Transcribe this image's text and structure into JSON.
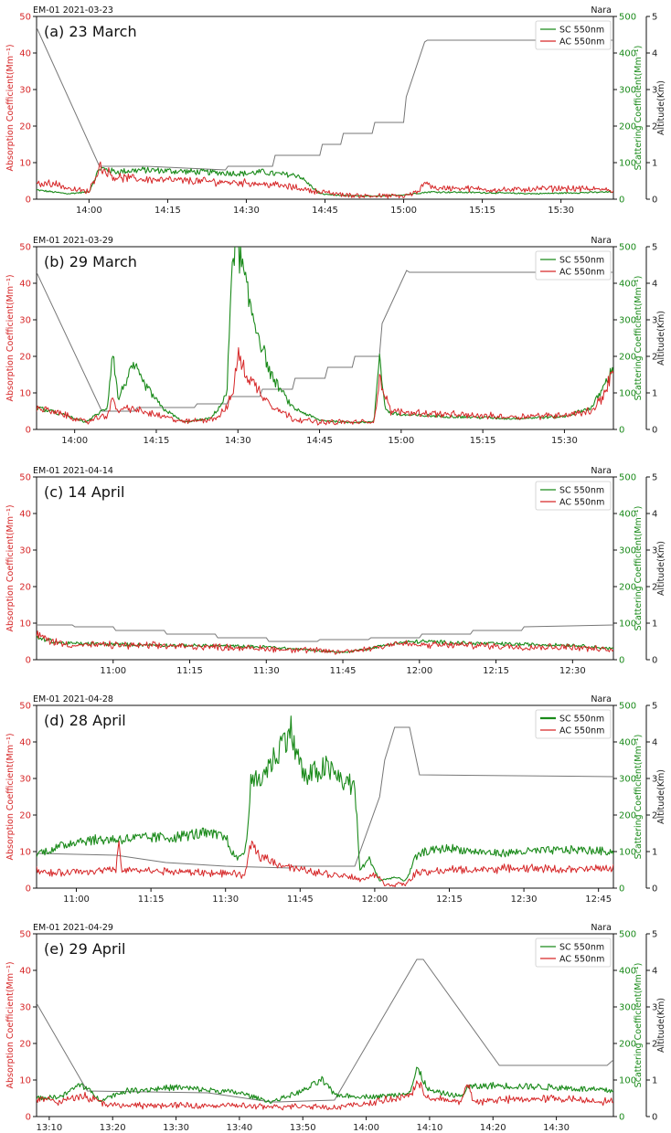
{
  "colors": {
    "absorption": "#d62728",
    "scattering": "#1a8a1a",
    "altitude": "#777777",
    "axis": "#111111"
  },
  "chart_data": [
    {
      "type": "line",
      "header": "EM-01 2021-03-23",
      "location": "Nara",
      "title": "(a) 23 March",
      "ylabel_left": "Absorption Coefficient(Mm⁻¹)",
      "ylabel_right": "Scattering Coefficient(Mm⁻¹)",
      "ylabel_alt": "Altitude(Km)",
      "ylim_left": [
        0,
        50
      ],
      "yticks_left": [
        0,
        10,
        20,
        30,
        40,
        50
      ],
      "ylim_right": [
        0,
        500
      ],
      "yticks_right": [
        0,
        100,
        200,
        300,
        400,
        500
      ],
      "ylim_alt": [
        0,
        5
      ],
      "yticks_alt": [
        0,
        1,
        2,
        3,
        4,
        5
      ],
      "xlim_min": [
        830,
        940
      ],
      "xticks": [
        "14:00",
        "14:15",
        "14:30",
        "14:45",
        "15:00",
        "15:15",
        "15:30"
      ],
      "xticks_min": [
        840,
        855,
        870,
        885,
        900,
        915,
        930
      ],
      "legend": [
        "SC 550nm",
        "AC 550nm"
      ],
      "legend_sc_bold": false,
      "series": [
        {
          "name": "SC 550nm",
          "x": [
            830,
            836,
            840,
            842,
            845,
            850,
            860,
            870,
            873,
            875,
            880,
            884,
            888,
            895,
            900,
            905,
            915,
            925,
            940
          ],
          "values": [
            25,
            15,
            20,
            85,
            75,
            80,
            75,
            70,
            75,
            70,
            65,
            15,
            10,
            8,
            12,
            20,
            18,
            15,
            20
          ]
        },
        {
          "name": "AC 550nm",
          "x": [
            830,
            833,
            836,
            840,
            842,
            845,
            850,
            860,
            870,
            875,
            880,
            884,
            890,
            900,
            903,
            904,
            906,
            910,
            920,
            930,
            940
          ],
          "values": [
            4,
            4.5,
            3,
            2,
            9,
            6,
            5.5,
            5,
            4.5,
            4,
            3,
            2,
            1,
            0.8,
            2,
            5,
            3,
            3,
            2.5,
            3,
            2.5
          ]
        },
        {
          "name": "Altitude",
          "x": [
            830,
            842,
            851,
            866,
            866.5,
            875,
            875.5,
            884,
            884.5,
            888,
            888.5,
            894,
            894.5,
            900,
            900.5,
            904,
            904.5,
            940
          ],
          "values": [
            4.7,
            0.9,
            0.9,
            0.8,
            0.9,
            0.9,
            1.2,
            1.2,
            1.5,
            1.5,
            1.8,
            1.8,
            2.1,
            2.1,
            2.8,
            4.3,
            4.35,
            4.35
          ]
        }
      ]
    },
    {
      "type": "line",
      "header": "EM-01 2021-03-29",
      "location": "Nara",
      "title": "(b) 29 March",
      "ylabel_left": "Absorption Coefficient(Mm⁻¹)",
      "ylabel_right": "Scattering Coefficient(Mm⁻¹)",
      "ylabel_alt": "Altitude(Km)",
      "ylim_left": [
        0,
        50
      ],
      "yticks_left": [
        0,
        10,
        20,
        30,
        40,
        50
      ],
      "ylim_right": [
        0,
        500
      ],
      "yticks_right": [
        0,
        100,
        200,
        300,
        400,
        500
      ],
      "ylim_alt": [
        0,
        5
      ],
      "yticks_alt": [
        0,
        1,
        2,
        3,
        4,
        5
      ],
      "xlim_min": [
        833,
        939
      ],
      "xticks": [
        "14:00",
        "14:15",
        "14:30",
        "14:45",
        "15:00",
        "15:15",
        "15:30"
      ],
      "xticks_min": [
        840,
        855,
        870,
        885,
        900,
        915,
        930
      ],
      "legend": [
        "SC 550nm",
        "AC 550nm"
      ],
      "legend_sc_bold": false,
      "series": [
        {
          "name": "SC 550nm",
          "x": [
            833,
            838,
            842,
            846,
            847,
            848,
            849,
            851,
            852,
            854,
            856,
            860,
            865,
            867,
            868,
            869,
            870,
            872,
            874,
            876,
            880,
            885,
            890,
            895,
            896,
            897,
            898,
            900,
            910,
            920,
            930,
            935,
            937,
            939
          ],
          "values": [
            60,
            40,
            20,
            60,
            220,
            80,
            120,
            175,
            140,
            100,
            60,
            20,
            30,
            70,
            100,
            500,
            500,
            350,
            250,
            150,
            60,
            25,
            20,
            20,
            210,
            60,
            45,
            40,
            35,
            30,
            35,
            60,
            110,
            170
          ]
        },
        {
          "name": "AC 550nm",
          "x": [
            833,
            838,
            842,
            846,
            847,
            848,
            850,
            852,
            855,
            860,
            866,
            868,
            869,
            870,
            872,
            876,
            880,
            885,
            890,
            895,
            896,
            898,
            910,
            920,
            930,
            935,
            937,
            939
          ],
          "values": [
            6,
            4,
            2,
            4,
            8,
            5,
            6,
            5,
            4,
            2,
            3,
            6,
            10,
            20,
            14,
            7,
            3,
            2,
            2,
            2,
            14,
            5,
            4,
            3.5,
            4,
            5,
            9,
            16
          ]
        },
        {
          "name": "Altitude",
          "x": [
            833,
            845,
            851,
            851.5,
            862,
            862.5,
            868,
            868.5,
            874,
            874.5,
            880,
            880.5,
            886,
            886.5,
            891,
            891.5,
            896,
            896.5,
            901,
            901.5,
            939
          ],
          "values": [
            4.3,
            0.5,
            0.5,
            0.6,
            0.6,
            0.7,
            0.7,
            0.9,
            0.9,
            1.1,
            1.1,
            1.4,
            1.4,
            1.7,
            1.7,
            2.0,
            2.0,
            2.9,
            4.35,
            4.3,
            4.3
          ]
        }
      ]
    },
    {
      "type": "line",
      "header": "EM-01 2021-04-14",
      "location": "Nara",
      "title": "(c) 14 April",
      "ylabel_left": "Absorption Coefficient(Mm⁻¹)",
      "ylabel_right": "Scattering Coefficient(Mm⁻¹)",
      "ylabel_alt": "Altitude(Km)",
      "ylim_left": [
        0,
        50
      ],
      "yticks_left": [
        0,
        10,
        20,
        30,
        40,
        50
      ],
      "ylim_right": [
        0,
        500
      ],
      "yticks_right": [
        0,
        100,
        200,
        300,
        400,
        500
      ],
      "ylim_alt": [
        0,
        5
      ],
      "yticks_alt": [
        0,
        1,
        2,
        3,
        4,
        5
      ],
      "xlim_min": [
        645,
        758
      ],
      "xticks": [
        "11:00",
        "11:15",
        "11:30",
        "11:45",
        "12:00",
        "12:15",
        "12:30"
      ],
      "xticks_min": [
        660,
        675,
        690,
        705,
        720,
        735,
        750
      ],
      "legend": [
        "SC 550nm",
        "AC 550nm"
      ],
      "legend_sc_bold": false,
      "series": [
        {
          "name": "SC 550nm",
          "x": [
            645,
            650,
            660,
            670,
            680,
            690,
            700,
            705,
            710,
            715,
            720,
            730,
            740,
            750,
            758
          ],
          "values": [
            60,
            45,
            42,
            40,
            38,
            35,
            25,
            20,
            30,
            45,
            50,
            45,
            42,
            40,
            30
          ]
        },
        {
          "name": "AC 550nm",
          "x": [
            645,
            648,
            652,
            660,
            670,
            680,
            690,
            700,
            705,
            710,
            715,
            720,
            730,
            740,
            750,
            758
          ],
          "values": [
            7,
            5,
            4,
            4,
            3.8,
            3.5,
            3,
            2.5,
            2,
            3,
            4.5,
            4,
            4,
            3.5,
            3.5,
            2.5
          ]
        },
        {
          "name": "Altitude",
          "x": [
            645,
            652,
            652.5,
            660,
            660.5,
            670,
            670.5,
            680,
            680.5,
            690,
            690.5,
            700,
            700.5,
            710,
            710.5,
            720,
            720.5,
            730,
            730.5,
            740,
            740.5,
            758
          ],
          "values": [
            0.95,
            0.95,
            0.9,
            0.9,
            0.8,
            0.8,
            0.7,
            0.7,
            0.6,
            0.6,
            0.5,
            0.5,
            0.55,
            0.55,
            0.6,
            0.6,
            0.7,
            0.7,
            0.8,
            0.8,
            0.9,
            0.95
          ]
        }
      ]
    },
    {
      "type": "line",
      "header": "EM-01 2021-04-28",
      "location": "Nara",
      "title": "(d) 28 April",
      "ylabel_left": "Absorption Coefficient(Mm⁻¹)",
      "ylabel_right": "Scattering Coefficient(Mm⁻¹)",
      "ylabel_alt": "Altitude(Km)",
      "ylim_left": [
        0,
        50
      ],
      "yticks_left": [
        0,
        10,
        20,
        30,
        40,
        50
      ],
      "ylim_right": [
        0,
        500
      ],
      "yticks_right": [
        0,
        100,
        200,
        300,
        400,
        500
      ],
      "ylim_alt": [
        0,
        5
      ],
      "yticks_alt": [
        0,
        1,
        2,
        3,
        4,
        5
      ],
      "xlim_min": [
        652,
        768
      ],
      "xticks": [
        "11:00",
        "11:15",
        "11:30",
        "11:45",
        "12:00",
        "12:15",
        "12:30",
        "12:45"
      ],
      "xticks_min": [
        660,
        675,
        690,
        705,
        720,
        735,
        750,
        765
      ],
      "legend": [
        "SC 550nm",
        "AC 550nm"
      ],
      "legend_sc_bold": true,
      "series": [
        {
          "name": "SC 550nm",
          "x": [
            652,
            656,
            660,
            670,
            680,
            685,
            690,
            692,
            694,
            695,
            697,
            700,
            703,
            704,
            706,
            710,
            714,
            716,
            717,
            719,
            721,
            724,
            726,
            727,
            728,
            730,
            735,
            740,
            745,
            750,
            760,
            768
          ],
          "values": [
            95,
            110,
            130,
            135,
            140,
            150,
            140,
            80,
            100,
            280,
            300,
            360,
            440,
            380,
            300,
            330,
            290,
            280,
            50,
            80,
            20,
            30,
            20,
            40,
            80,
            100,
            110,
            100,
            95,
            100,
            105,
            100
          ]
        },
        {
          "name": "AC 550nm",
          "x": [
            652,
            655,
            660,
            668,
            668.5,
            669,
            680,
            690,
            694,
            695,
            697,
            700,
            705,
            710,
            716,
            717,
            720,
            722,
            726,
            727,
            728,
            735,
            740,
            750,
            760,
            768
          ],
          "values": [
            5,
            4,
            4.5,
            5,
            13,
            5,
            4.5,
            4,
            3.5,
            12,
            9,
            7,
            5,
            4,
            3,
            2,
            4,
            1,
            1,
            2,
            4,
            5,
            5,
            5.5,
            5,
            5.5
          ]
        },
        {
          "name": "Altitude",
          "x": [
            652,
            668,
            678,
            690,
            703,
            703.5,
            716,
            721,
            722,
            724,
            727,
            729,
            768
          ],
          "values": [
            0.95,
            0.9,
            0.7,
            0.6,
            0.55,
            0.6,
            0.6,
            2.5,
            3.5,
            4.4,
            4.4,
            3.1,
            3.05
          ]
        }
      ]
    },
    {
      "type": "line",
      "header": "EM-01 2021-04-29",
      "location": "Nara",
      "title": "(e) 29 April",
      "ylabel_left": "Absorption Coefficient(Mm⁻¹)",
      "ylabel_right": "Scattering Coefficient(Mm⁻¹)",
      "ylabel_alt": "Altitude(Km)",
      "ylim_left": [
        0,
        50
      ],
      "yticks_left": [
        0,
        10,
        20,
        30,
        40,
        50
      ],
      "ylim_right": [
        0,
        500
      ],
      "yticks_right": [
        0,
        100,
        200,
        300,
        400,
        500
      ],
      "ylim_alt": [
        0,
        5
      ],
      "yticks_alt": [
        0,
        1,
        2,
        3,
        4,
        5
      ],
      "xlim_min": [
        788,
        879
      ],
      "xticks": [
        "13:10",
        "13:20",
        "13:30",
        "13:40",
        "13:50",
        "14:00",
        "14:10",
        "14:20",
        "14:30"
      ],
      "xticks_min": [
        790,
        800,
        810,
        820,
        830,
        840,
        850,
        860,
        870
      ],
      "legend": [
        "SC 550nm",
        "AC 550nm"
      ],
      "legend_sc_bold": false,
      "series": [
        {
          "name": "SC 550nm",
          "x": [
            788,
            792,
            795,
            798,
            802,
            810,
            820,
            825,
            830,
            833,
            835,
            838,
            842,
            845,
            847,
            848,
            850,
            855,
            856,
            860,
            870,
            879
          ],
          "values": [
            50,
            55,
            90,
            45,
            70,
            80,
            65,
            40,
            70,
            100,
            60,
            55,
            55,
            60,
            70,
            130,
            70,
            55,
            80,
            85,
            80,
            70
          ]
        },
        {
          "name": "AC 550nm",
          "x": [
            788,
            792,
            795,
            800,
            810,
            820,
            825,
            830,
            835,
            840,
            845,
            847,
            848,
            850,
            855,
            856,
            857,
            860,
            870,
            879
          ],
          "values": [
            5,
            4,
            6,
            3,
            3,
            3,
            2.5,
            3,
            2.5,
            3.5,
            5,
            6,
            9,
            5,
            4,
            9,
            4,
            4.5,
            5,
            4
          ]
        },
        {
          "name": "Altitude",
          "x": [
            788,
            796,
            815,
            825,
            826,
            835,
            848,
            849,
            861,
            878,
            879
          ],
          "values": [
            3.1,
            0.7,
            0.65,
            0.4,
            0.4,
            0.45,
            4.3,
            4.3,
            1.4,
            1.4,
            1.55
          ]
        }
      ]
    }
  ]
}
